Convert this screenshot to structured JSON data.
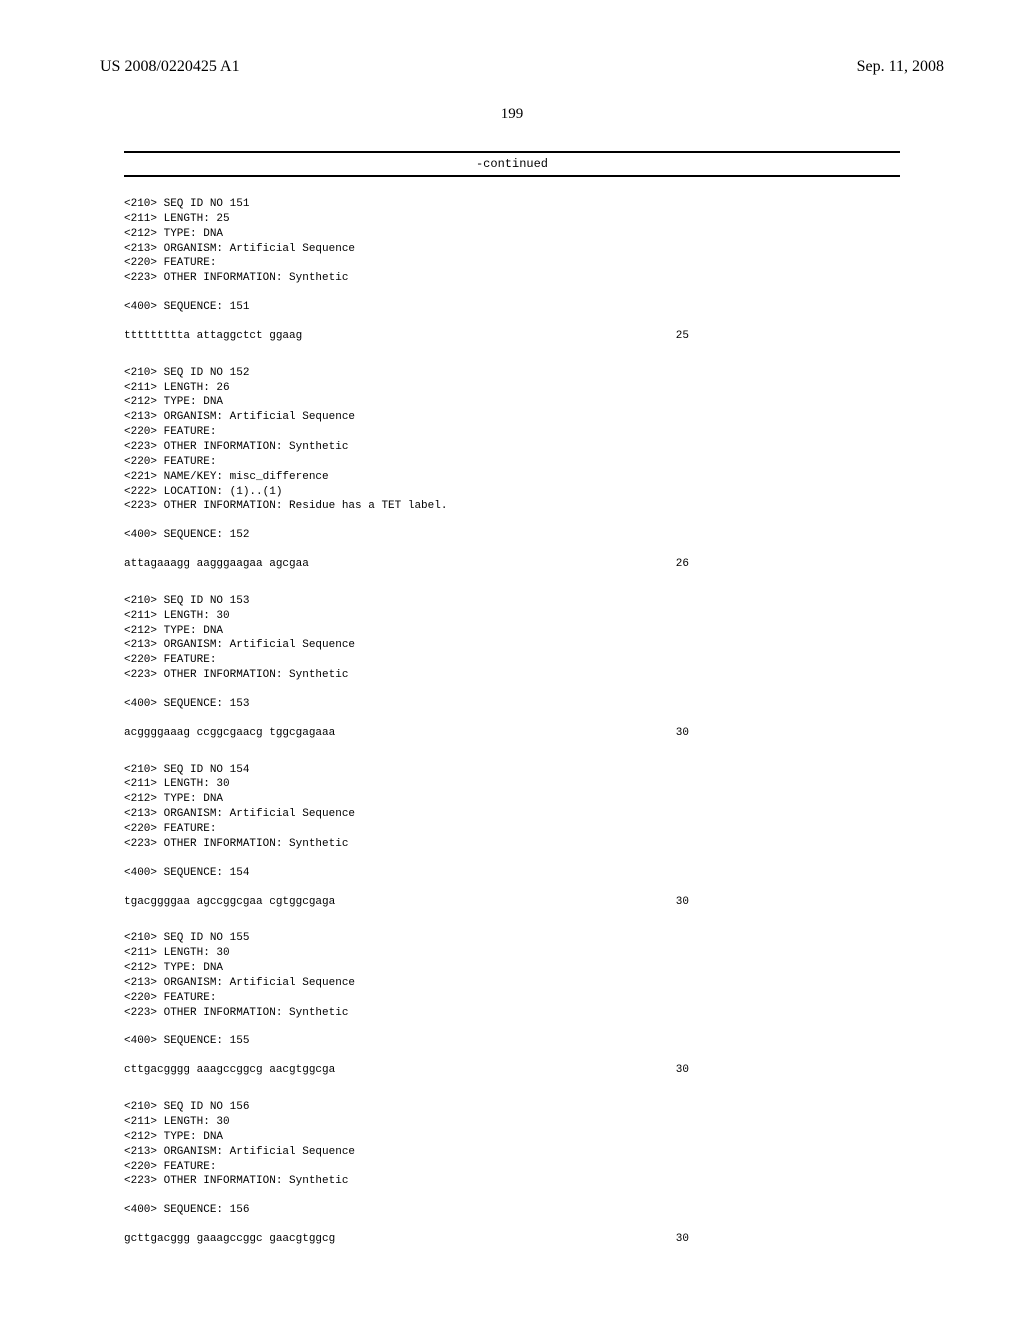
{
  "header": {
    "pub_number": "US 2008/0220425 A1",
    "pub_date": "Sep. 11, 2008"
  },
  "page_number": "199",
  "continued_label": "-continued",
  "sequences": [
    {
      "header_lines": [
        "<210> SEQ ID NO 151",
        "<211> LENGTH: 25",
        "<212> TYPE: DNA",
        "<213> ORGANISM: Artificial Sequence",
        "<220> FEATURE:",
        "<223> OTHER INFORMATION: Synthetic"
      ],
      "seq_label": "<400> SEQUENCE: 151",
      "sequence": "ttttttttta attaggctct ggaag",
      "length": "25"
    },
    {
      "header_lines": [
        "<210> SEQ ID NO 152",
        "<211> LENGTH: 26",
        "<212> TYPE: DNA",
        "<213> ORGANISM: Artificial Sequence",
        "<220> FEATURE:",
        "<223> OTHER INFORMATION: Synthetic",
        "<220> FEATURE:",
        "<221> NAME/KEY: misc_difference",
        "<222> LOCATION: (1)..(1)",
        "<223> OTHER INFORMATION: Residue has a TET label."
      ],
      "seq_label": "<400> SEQUENCE: 152",
      "sequence": "attagaaagg aagggaagaa agcgaa",
      "length": "26"
    },
    {
      "header_lines": [
        "<210> SEQ ID NO 153",
        "<211> LENGTH: 30",
        "<212> TYPE: DNA",
        "<213> ORGANISM: Artificial Sequence",
        "<220> FEATURE:",
        "<223> OTHER INFORMATION: Synthetic"
      ],
      "seq_label": "<400> SEQUENCE: 153",
      "sequence": "acggggaaag ccggcgaacg tggcgagaaa",
      "length": "30"
    },
    {
      "header_lines": [
        "<210> SEQ ID NO 154",
        "<211> LENGTH: 30",
        "<212> TYPE: DNA",
        "<213> ORGANISM: Artificial Sequence",
        "<220> FEATURE:",
        "<223> OTHER INFORMATION: Synthetic"
      ],
      "seq_label": "<400> SEQUENCE: 154",
      "sequence": "tgacggggaa agccggcgaa cgtggcgaga",
      "length": "30"
    },
    {
      "header_lines": [
        "<210> SEQ ID NO 155",
        "<211> LENGTH: 30",
        "<212> TYPE: DNA",
        "<213> ORGANISM: Artificial Sequence",
        "<220> FEATURE:",
        "<223> OTHER INFORMATION: Synthetic"
      ],
      "seq_label": "<400> SEQUENCE: 155",
      "sequence": "cttgacgggg aaagccggcg aacgtggcga",
      "length": "30"
    },
    {
      "header_lines": [
        "<210> SEQ ID NO 156",
        "<211> LENGTH: 30",
        "<212> TYPE: DNA",
        "<213> ORGANISM: Artificial Sequence",
        "<220> FEATURE:",
        "<223> OTHER INFORMATION: Synthetic"
      ],
      "seq_label": "<400> SEQUENCE: 156",
      "sequence": "gcttgacggg gaaagccggc gaacgtggcg",
      "length": "30"
    }
  ]
}
